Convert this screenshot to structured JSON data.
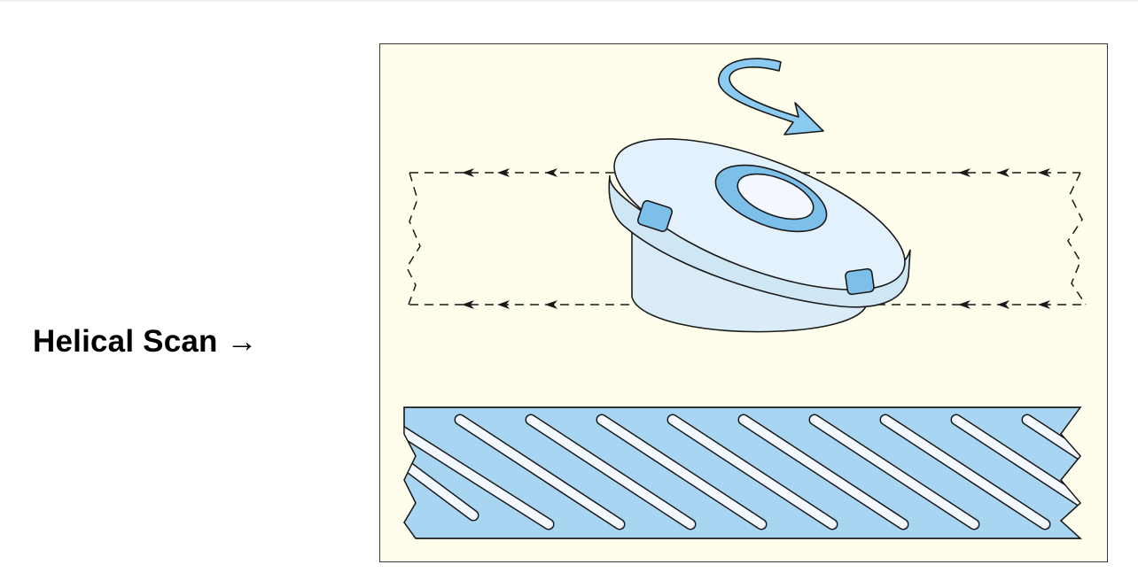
{
  "label": {
    "text": "Helical Scan",
    "arrow": "→"
  },
  "colors": {
    "panel_bg": "#fffeed",
    "drum_face": "#d9ecf8",
    "drum_accent": "#7cc0ea",
    "tape_fill": "#a8d6f2",
    "track_fill": "#f4f9ff",
    "arrow_fill": "#8ccbf1",
    "stroke": "#1a1a1a"
  },
  "icons": {
    "rotation": "curved-rotation-arrow-icon",
    "direction": "arrowhead-left-icon"
  }
}
